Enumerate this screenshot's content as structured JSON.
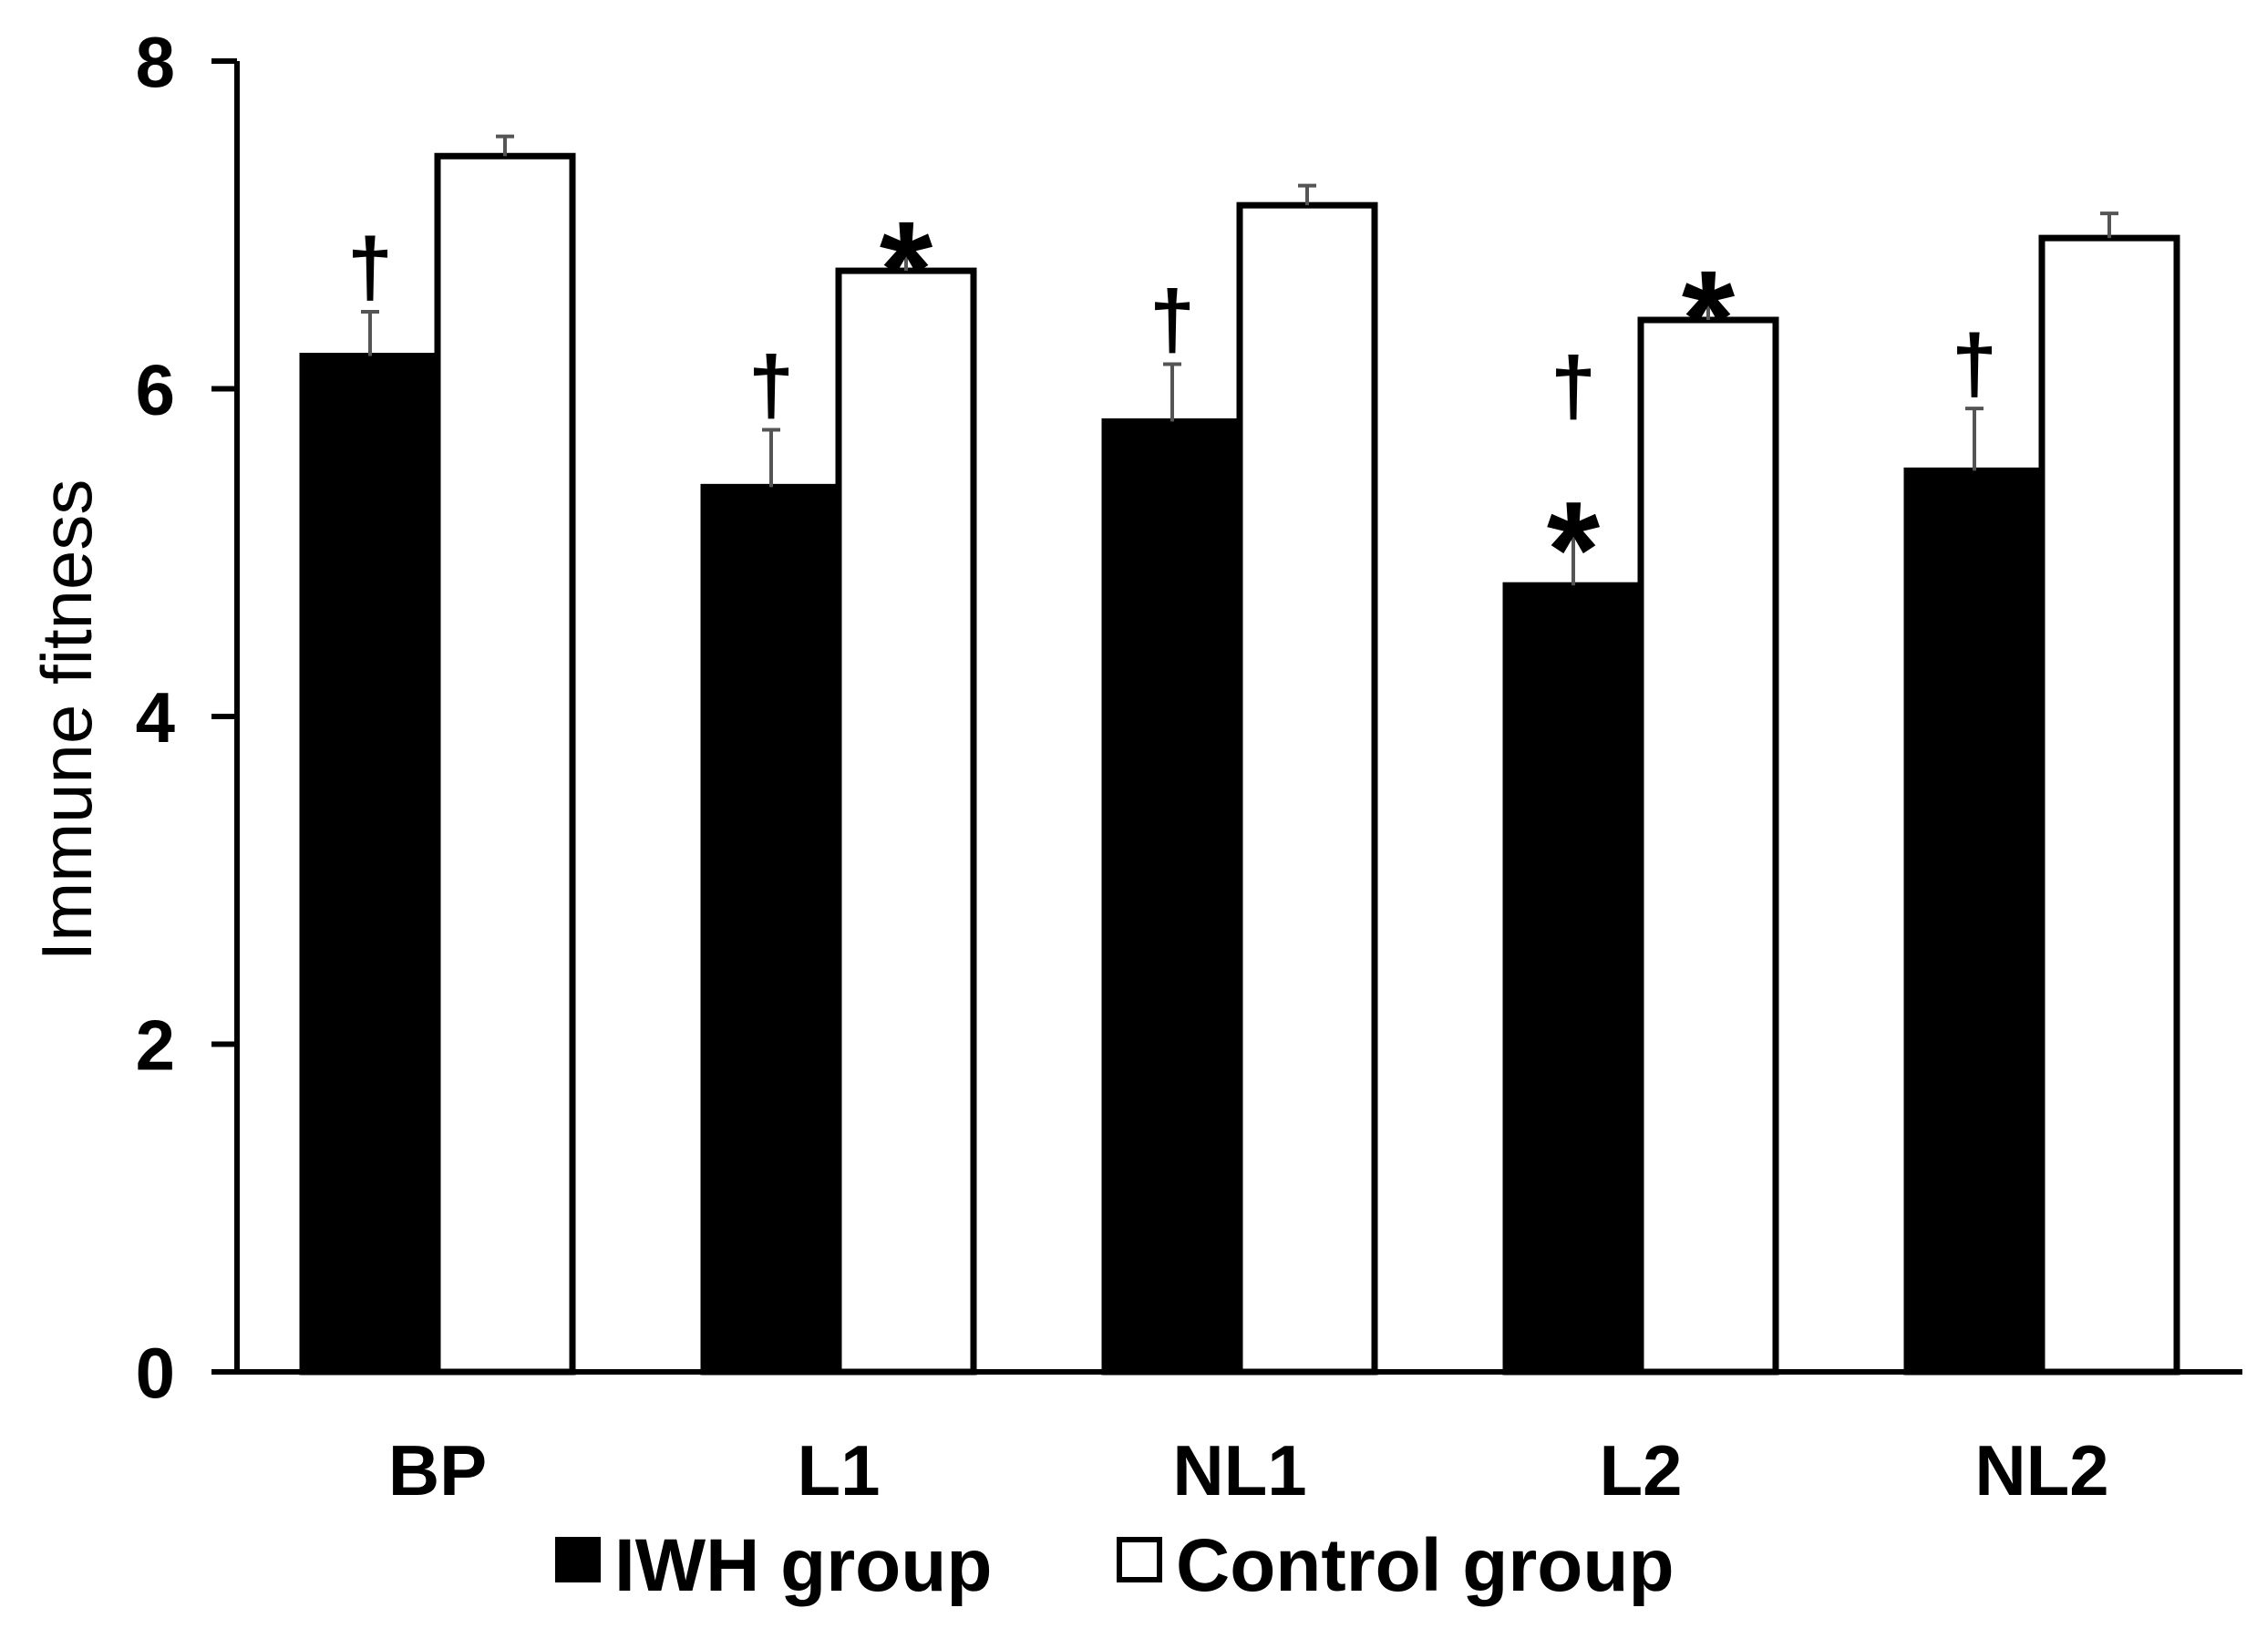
{
  "chart_data": {
    "type": "bar",
    "title": "",
    "xlabel": "",
    "ylabel": "Immune fitness",
    "ylim": [
      0,
      8
    ],
    "yticks": [
      "0",
      "2",
      "4",
      "6",
      "8"
    ],
    "grid": false,
    "legend_position": "bottom",
    "categories": [
      "BP",
      "L1",
      "NL1",
      "L2",
      "NL2"
    ],
    "series": [
      {
        "name": "IWH group",
        "color": "#000000",
        "values": [
          6.2,
          5.4,
          5.8,
          4.8,
          5.5
        ],
        "errors": [
          0.27,
          0.35,
          0.35,
          0.36,
          0.38
        ],
        "marks": [
          [
            "†"
          ],
          [
            "†"
          ],
          [
            "†"
          ],
          [
            "*",
            "†"
          ],
          [
            "†"
          ]
        ]
      },
      {
        "name": "Control group",
        "color": "#ffffff",
        "values": [
          7.42,
          6.72,
          7.12,
          6.42,
          6.92
        ],
        "errors": [
          0.12,
          0.15,
          0.12,
          0.15,
          0.15
        ],
        "marks": [
          [],
          [
            "*"
          ],
          [],
          [
            "*"
          ],
          []
        ]
      }
    ]
  }
}
